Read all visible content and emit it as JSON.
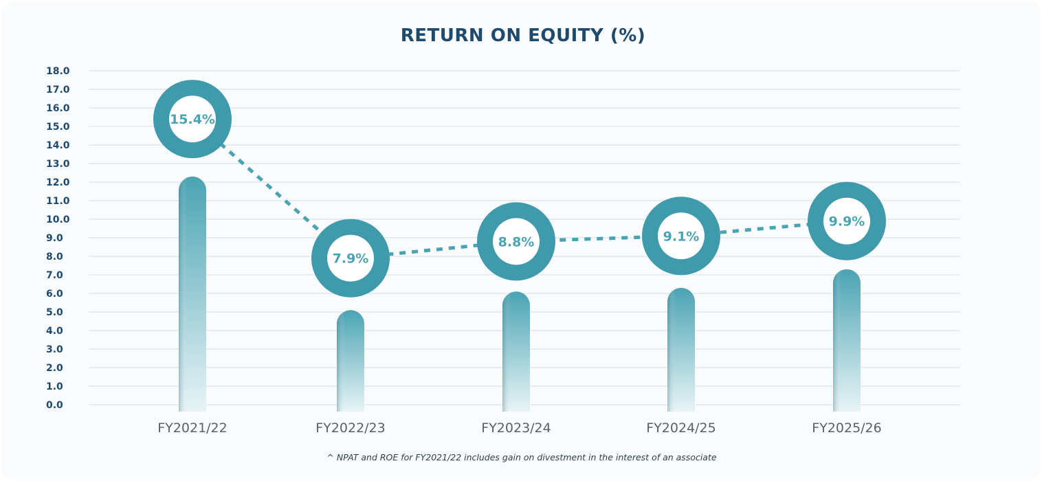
{
  "chart_data": {
    "type": "line",
    "title": "RETURN ON EQUITY (%)",
    "categories": [
      "FY2021/22",
      "FY2022/23",
      "FY2023/24",
      "FY2024/25",
      "FY2025/26"
    ],
    "values": [
      15.4,
      7.9,
      8.8,
      9.1,
      9.9
    ],
    "data_labels": [
      "15.4%",
      "7.9%",
      "8.8%",
      "9.1%",
      "9.9%"
    ],
    "decorative_bar_values": [
      12.3,
      5.1,
      6.1,
      6.3,
      7.3
    ],
    "yticks": [
      "0.0",
      "1.0",
      "2.0",
      "3.0",
      "4.0",
      "5.0",
      "6.0",
      "7.0",
      "8.0",
      "9.0",
      "10.0",
      "11.0",
      "12.0",
      "13.0",
      "14.0",
      "15.0",
      "16.0",
      "17.0",
      "18.0"
    ],
    "ylim": [
      0,
      18
    ],
    "grid": true,
    "colors": {
      "accent": "#4aa3b3",
      "marker_ring": "#3f9aac",
      "title": "#1e4a6e",
      "grid": "#dde2e8"
    }
  },
  "footnote": "^ NPAT and ROE for FY2021/22 includes gain on divestment in the interest of an associate"
}
